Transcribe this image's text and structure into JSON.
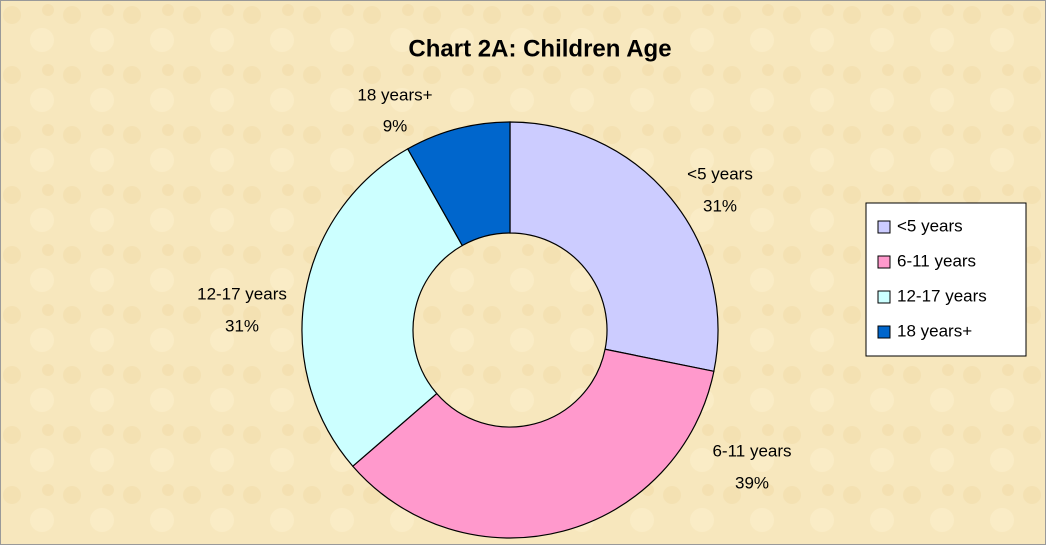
{
  "chart_data": {
    "type": "donut",
    "title": "Chart 2A: Children Age",
    "categories": [
      "<5 years",
      "6-11 years",
      "12-17 years",
      "18 years+"
    ],
    "values": [
      31,
      39,
      31,
      9
    ],
    "value_labels": [
      "31%",
      "39%",
      "31%",
      "9%"
    ],
    "colors": [
      "#ccccff",
      "#ff99cc",
      "#ccffff",
      "#0066cc"
    ],
    "legend": "right"
  }
}
